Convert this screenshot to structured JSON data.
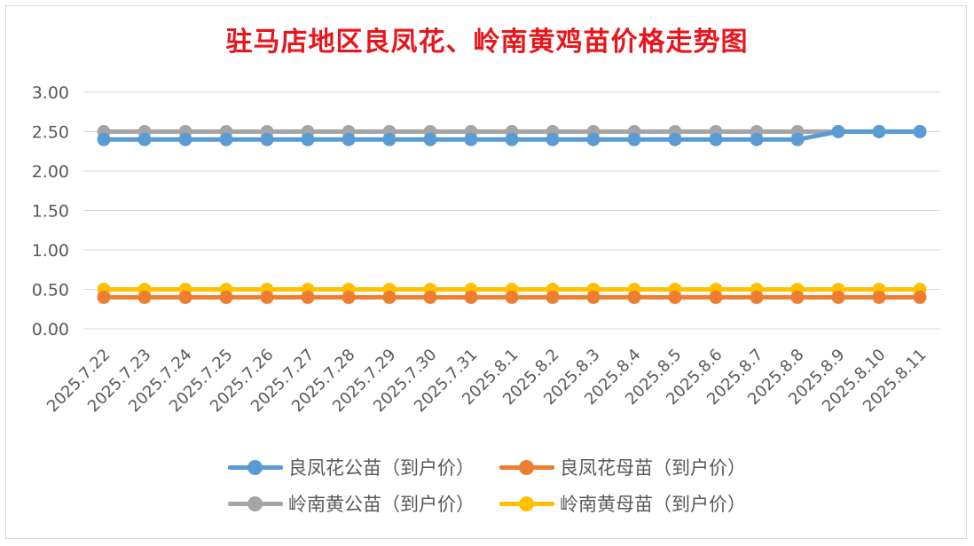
{
  "chart_data": {
    "type": "line",
    "title": "驻马店地区良凤花、岭南黄鸡苗价格走势图",
    "xlabel": "",
    "ylabel": "",
    "categories": [
      "2025.7.22",
      "2025.7.23",
      "2025.7.24",
      "2025.7.25",
      "2025.7.26",
      "2025.7.27",
      "2025.7.28",
      "2025.7.29",
      "2025.7.30",
      "2025.7.31",
      "2025.8.1",
      "2025.8.2",
      "2025.8.3",
      "2025.8.4",
      "2025.8.5",
      "2025.8.6",
      "2025.8.7",
      "2025.8.8",
      "2025.8.9",
      "2025.8.10",
      "2025.8.11"
    ],
    "yticks": [
      "0.00",
      "0.50",
      "1.00",
      "1.50",
      "2.00",
      "2.50",
      "3.00"
    ],
    "ylim": [
      0,
      3
    ],
    "grid": true,
    "legend_position": "bottom",
    "series": [
      {
        "name": "良凤花公苗（到户价）",
        "color": "#5b9bd5",
        "values": [
          2.4,
          2.4,
          2.4,
          2.4,
          2.4,
          2.4,
          2.4,
          2.4,
          2.4,
          2.4,
          2.4,
          2.4,
          2.4,
          2.4,
          2.4,
          2.4,
          2.4,
          2.4,
          2.5,
          2.5,
          2.5
        ]
      },
      {
        "name": "良凤花母苗（到户价）",
        "color": "#ed7d31",
        "values": [
          0.4,
          0.4,
          0.4,
          0.4,
          0.4,
          0.4,
          0.4,
          0.4,
          0.4,
          0.4,
          0.4,
          0.4,
          0.4,
          0.4,
          0.4,
          0.4,
          0.4,
          0.4,
          0.4,
          0.4,
          0.4
        ]
      },
      {
        "name": "岭南黄公苗（到户价）",
        "color": "#a5a5a5",
        "values": [
          2.5,
          2.5,
          2.5,
          2.5,
          2.5,
          2.5,
          2.5,
          2.5,
          2.5,
          2.5,
          2.5,
          2.5,
          2.5,
          2.5,
          2.5,
          2.5,
          2.5,
          2.5,
          2.5,
          2.5,
          2.5
        ]
      },
      {
        "name": "岭南黄母苗（到户价）",
        "color": "#ffc000",
        "values": [
          0.5,
          0.5,
          0.5,
          0.5,
          0.5,
          0.5,
          0.5,
          0.5,
          0.5,
          0.5,
          0.5,
          0.5,
          0.5,
          0.5,
          0.5,
          0.5,
          0.5,
          0.5,
          0.5,
          0.5,
          0.5
        ]
      }
    ]
  }
}
